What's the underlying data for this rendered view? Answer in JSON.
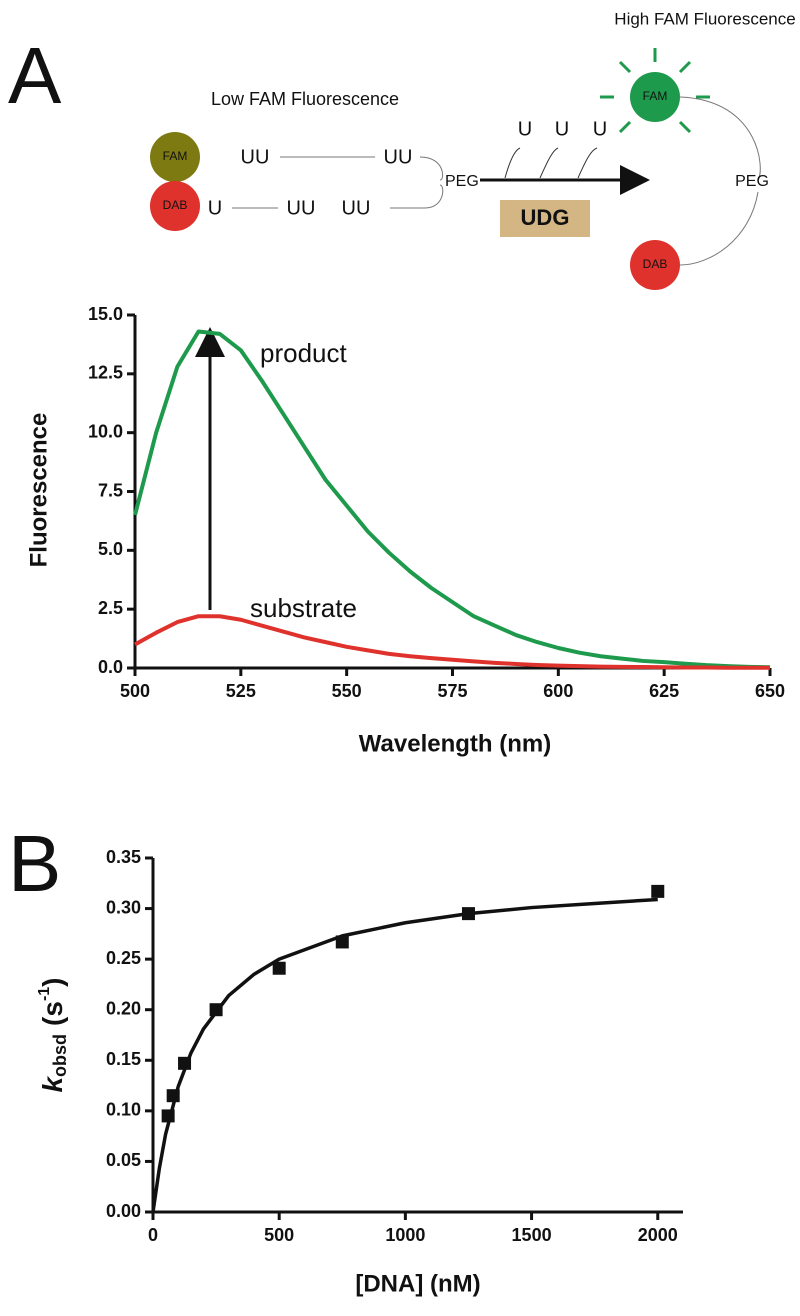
{
  "panel_labels": [
    "A",
    "B"
  ],
  "diagram": {
    "left_caption": "Low FAM Fluorescence",
    "right_caption": "High FAM Fluorescence",
    "fam": "FAM",
    "dab": "DAB",
    "peg": "PEG",
    "enzyme": "UDG",
    "top_strand": [
      "UU",
      "UU"
    ],
    "bottom_strand": [
      "U",
      "UU",
      "UU"
    ],
    "released": [
      "U",
      "U",
      "U"
    ]
  },
  "chart_data": [
    {
      "type": "line",
      "xlabel": "Wavelength (nm)",
      "ylabel": "Fluorescence",
      "x": [
        500,
        505,
        510,
        515,
        520,
        525,
        530,
        535,
        540,
        545,
        550,
        555,
        560,
        565,
        570,
        575,
        580,
        585,
        590,
        595,
        600,
        605,
        610,
        615,
        620,
        625,
        630,
        635,
        640,
        645,
        650
      ],
      "series": [
        {
          "color": "#1e9a4c",
          "values": [
            6.5,
            10,
            12.8,
            14.3,
            14.2,
            13.5,
            12.2,
            10.8,
            9.4,
            8.0,
            6.9,
            5.8,
            4.9,
            4.1,
            3.4,
            2.8,
            2.2,
            1.8,
            1.4,
            1.1,
            0.85,
            0.65,
            0.5,
            0.4,
            0.3,
            0.25,
            0.18,
            0.12,
            0.08,
            0.05,
            0.03
          ]
        },
        {
          "color": "#e0322c",
          "values": [
            1.0,
            1.5,
            1.95,
            2.2,
            2.2,
            2.05,
            1.8,
            1.55,
            1.3,
            1.1,
            0.9,
            0.75,
            0.6,
            0.5,
            0.42,
            0.35,
            0.28,
            0.22,
            0.17,
            0.13,
            0.1,
            0.08,
            0.06,
            0.05,
            0.04,
            0.03,
            0.02,
            0.02,
            0.01,
            0.01,
            0.01
          ]
        }
      ],
      "annotations": [
        "product",
        "substrate"
      ],
      "xlim": [
        500,
        650
      ],
      "xticks": [
        500,
        525,
        550,
        575,
        600,
        625,
        650
      ],
      "ylim": [
        0,
        15
      ],
      "yticks": [
        {
          "value": 0,
          "label": "0.0"
        },
        {
          "value": 2.5,
          "label": "2.5"
        },
        {
          "value": 5,
          "label": "5.0"
        },
        {
          "value": 7.5,
          "label": "7.5"
        },
        {
          "value": 10,
          "label": "10.0"
        },
        {
          "value": 12.5,
          "label": "12.5"
        },
        {
          "value": 15,
          "label": "15.0"
        }
      ]
    },
    {
      "type": "scatter",
      "xlabel": "[DNA] (nM)",
      "ylabel": {
        "symbol": "k",
        "subscript": "obsd",
        "unit_open": "(s",
        "superscript": "-1",
        "unit_close": ")"
      },
      "x": [
        60,
        80,
        125,
        250,
        500,
        750,
        1250,
        2000
      ],
      "values": [
        0.095,
        0.115,
        0.147,
        0.2,
        0.241,
        0.267,
        0.295,
        0.317
      ],
      "color": "#111111",
      "fit": {
        "x": [
          0,
          25,
          50,
          100,
          150,
          200,
          300,
          400,
          500,
          750,
          1000,
          1250,
          1500,
          1750,
          2000
        ],
        "values": [
          0,
          0.0429,
          0.077,
          0.1241,
          0.157,
          0.181,
          0.214,
          0.235,
          0.25,
          0.273,
          0.286,
          0.295,
          0.301,
          0.305,
          0.309
        ]
      },
      "xlim": [
        0,
        2100
      ],
      "xticks": [
        0,
        500,
        1000,
        1500,
        2000
      ],
      "ylim": [
        0,
        0.35
      ],
      "yticks": [
        {
          "value": 0,
          "label": "0.00"
        },
        {
          "value": 0.05,
          "label": "0.05"
        },
        {
          "value": 0.1,
          "label": "0.10"
        },
        {
          "value": 0.15,
          "label": "0.15"
        },
        {
          "value": 0.2,
          "label": "0.20"
        },
        {
          "value": 0.25,
          "label": "0.25"
        },
        {
          "value": 0.3,
          "label": "0.30"
        },
        {
          "value": 0.35,
          "label": "0.35"
        }
      ]
    }
  ]
}
